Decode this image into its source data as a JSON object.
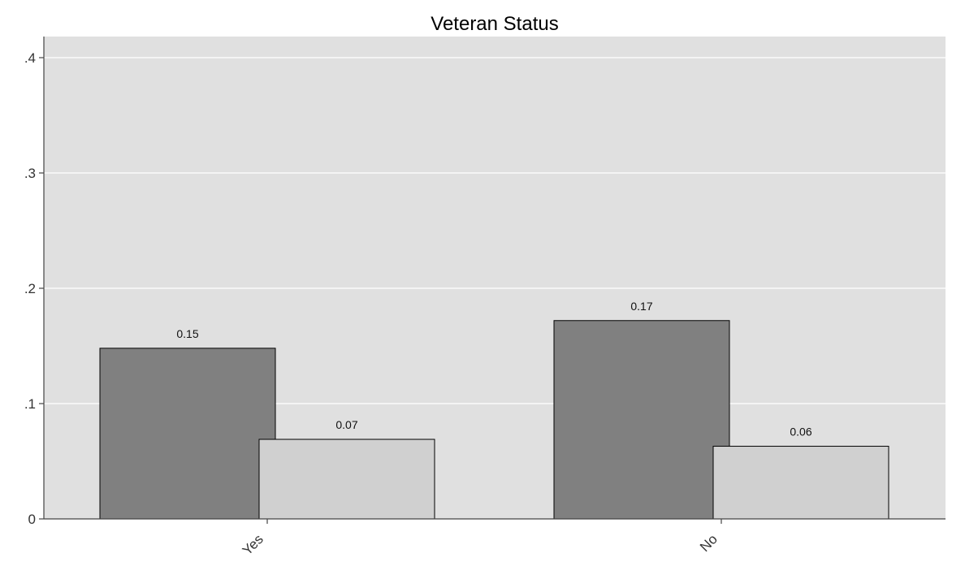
{
  "chart_data": {
    "type": "bar",
    "title": "Veteran Status",
    "categories": [
      "Yes",
      "No"
    ],
    "series": [
      {
        "values": [
          0.148,
          0.172
        ]
      },
      {
        "values": [
          0.069,
          0.063
        ]
      }
    ],
    "data_labels": [
      [
        "0.15",
        "0.17"
      ],
      [
        "0.07",
        "0.06"
      ]
    ],
    "yticks": [
      {
        "value": 0,
        "label": "0"
      },
      {
        "value": 0.1,
        "label": ".1"
      },
      {
        "value": 0.2,
        "label": ".2"
      },
      {
        "value": 0.3,
        "label": ".3"
      },
      {
        "value": 0.4,
        "label": ".4"
      }
    ],
    "ylim": [
      0,
      0.4
    ],
    "grid": true,
    "colors": {
      "plot_background": "#e0e0e0",
      "gridline": "#ffffff",
      "series": [
        "#808080",
        "#d0d0d0"
      ],
      "bar_outline": "#000000",
      "axis": "#444444"
    }
  }
}
